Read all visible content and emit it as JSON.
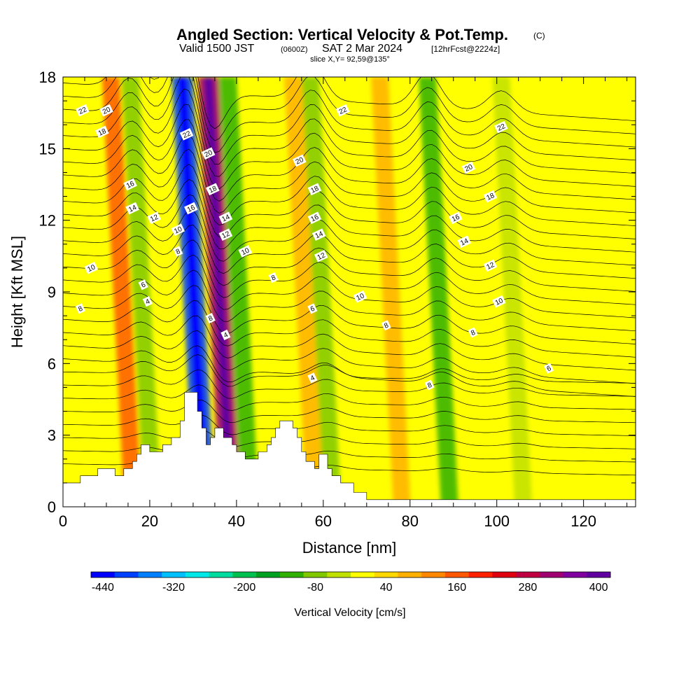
{
  "header": {
    "title_main": "Angled Section: Vertical Velocity & Pot.Temp.",
    "title_copyright": "(C)",
    "valid_prefix": "Valid 1500 JST",
    "valid_z": "(0600Z)",
    "valid_date": "SAT 2 Mar 2024",
    "valid_fcst": "[12hrFcst@2224z]",
    "slice": "slice X,Y= 92,59@135°"
  },
  "chart_data": {
    "type": "heatmap",
    "xlabel": "Distance [nm]",
    "ylabel": "Height [Kft MSL]",
    "xlim": [
      0,
      132
    ],
    "ylim": [
      0,
      18
    ],
    "x_ticks": [
      0,
      20,
      40,
      60,
      80,
      100,
      120
    ],
    "y_ticks": [
      0,
      3,
      6,
      9,
      12,
      15,
      18
    ],
    "x_tick_labels": [
      "0",
      "20",
      "40",
      "60",
      "80",
      "100",
      "120"
    ],
    "y_tick_labels": [
      "0",
      "3",
      "6",
      "9",
      "12",
      "15",
      "18"
    ],
    "colorbar": {
      "label": "Vertical Velocity [cm/s]",
      "colors": [
        "#0000ff",
        "#0040ff",
        "#0080ff",
        "#00c0ff",
        "#00e8e8",
        "#00dca0",
        "#00c050",
        "#00a020",
        "#30b000",
        "#80c800",
        "#c0e000",
        "#ffff00",
        "#ffd800",
        "#ffb000",
        "#ff8800",
        "#ff5800",
        "#ff2000",
        "#e00010",
        "#c00040",
        "#a00070",
        "#8000a0",
        "#6000a0"
      ],
      "tick_labels": [
        "-440",
        "-320",
        "-200",
        "-80",
        "40",
        "160",
        "280",
        "400"
      ],
      "tick_index": [
        0,
        3,
        6,
        9,
        12,
        15,
        18,
        21
      ]
    },
    "velocity_bands": [
      {
        "x": 15.5,
        "value": -80
      },
      {
        "x": 27.5,
        "value": -400
      },
      {
        "x": 33.5,
        "value": 300
      },
      {
        "x": 38,
        "value": -120
      },
      {
        "x": 57,
        "value": -100
      },
      {
        "x": 84,
        "value": -120
      },
      {
        "x": 101,
        "value": -60
      },
      {
        "x": 11,
        "value": 160
      },
      {
        "x": 53,
        "value": 80
      },
      {
        "x": 73,
        "value": 80
      }
    ],
    "terrain": [
      [
        0,
        1
      ],
      [
        4,
        1
      ],
      [
        4,
        1.3
      ],
      [
        8,
        1.3
      ],
      [
        8,
        1.6
      ],
      [
        12,
        1.6
      ],
      [
        12,
        1.3
      ],
      [
        14,
        1.3
      ],
      [
        14,
        1.6
      ],
      [
        16,
        1.6
      ],
      [
        16,
        1.9
      ],
      [
        17,
        1.9
      ],
      [
        17,
        2.2
      ],
      [
        18,
        2.2
      ],
      [
        18,
        2.6
      ],
      [
        20,
        2.6
      ],
      [
        20,
        2.3
      ],
      [
        23,
        2.3
      ],
      [
        23,
        2.6
      ],
      [
        25,
        2.6
      ],
      [
        25,
        2.9
      ],
      [
        27,
        2.9
      ],
      [
        27,
        3.6
      ],
      [
        28,
        3.6
      ],
      [
        28,
        4.8
      ],
      [
        31,
        4.8
      ],
      [
        31,
        4
      ],
      [
        32,
        4
      ],
      [
        32,
        3.3
      ],
      [
        33,
        3.3
      ],
      [
        33,
        2.6
      ],
      [
        34,
        2.6
      ],
      [
        34,
        2.9
      ],
      [
        35,
        2.9
      ],
      [
        35,
        3.3
      ],
      [
        37,
        3.3
      ],
      [
        37,
        2.9
      ],
      [
        39,
        2.9
      ],
      [
        39,
        2.6
      ],
      [
        40,
        2.6
      ],
      [
        40,
        2.3
      ],
      [
        42,
        2.3
      ],
      [
        42,
        2
      ],
      [
        45,
        2
      ],
      [
        45,
        2.3
      ],
      [
        47,
        2.3
      ],
      [
        47,
        2.6
      ],
      [
        48,
        2.6
      ],
      [
        48,
        2.9
      ],
      [
        49,
        2.9
      ],
      [
        49,
        3.3
      ],
      [
        50,
        3.3
      ],
      [
        50,
        3.6
      ],
      [
        53,
        3.6
      ],
      [
        53,
        3.3
      ],
      [
        54,
        3.3
      ],
      [
        54,
        2.9
      ],
      [
        55,
        2.9
      ],
      [
        55,
        2.3
      ],
      [
        56,
        2.3
      ],
      [
        56,
        1.9
      ],
      [
        58,
        1.9
      ],
      [
        58,
        1.6
      ],
      [
        59,
        1.6
      ],
      [
        59,
        2.2
      ],
      [
        61,
        2.2
      ],
      [
        61,
        1.6
      ],
      [
        62,
        1.6
      ],
      [
        62,
        1.3
      ],
      [
        64,
        1.3
      ],
      [
        64,
        1
      ],
      [
        67,
        1
      ],
      [
        67,
        0.6
      ],
      [
        70,
        0.6
      ],
      [
        70,
        0.3
      ],
      [
        132,
        0.3
      ],
      [
        132,
        0
      ],
      [
        0,
        0
      ]
    ],
    "theta_labels": [
      {
        "x": 4,
        "y": 8.3,
        "text": "8"
      },
      {
        "x": 6.5,
        "y": 10,
        "text": "10"
      },
      {
        "x": 9,
        "y": 15.7,
        "text": "18"
      },
      {
        "x": 10,
        "y": 16.6,
        "text": "20"
      },
      {
        "x": 4.5,
        "y": 16.6,
        "text": "22"
      },
      {
        "x": 15.5,
        "y": 13.5,
        "text": "16"
      },
      {
        "x": 16,
        "y": 12.5,
        "text": "14"
      },
      {
        "x": 21,
        "y": 12.1,
        "text": "12"
      },
      {
        "x": 18.5,
        "y": 9.3,
        "text": "6"
      },
      {
        "x": 19.5,
        "y": 8.6,
        "text": "4"
      },
      {
        "x": 28.5,
        "y": 15.6,
        "text": "22"
      },
      {
        "x": 33.5,
        "y": 14.8,
        "text": "20"
      },
      {
        "x": 34.5,
        "y": 13.3,
        "text": "18"
      },
      {
        "x": 29.5,
        "y": 12.5,
        "text": "16"
      },
      {
        "x": 37.5,
        "y": 12.1,
        "text": "14"
      },
      {
        "x": 37.5,
        "y": 11.4,
        "text": "12"
      },
      {
        "x": 26.5,
        "y": 11.6,
        "text": "10"
      },
      {
        "x": 26.5,
        "y": 10.7,
        "text": "8"
      },
      {
        "x": 34,
        "y": 7.9,
        "text": "8"
      },
      {
        "x": 37.5,
        "y": 7.2,
        "text": "4"
      },
      {
        "x": 42,
        "y": 10.7,
        "text": "10"
      },
      {
        "x": 48.5,
        "y": 9.6,
        "text": "8"
      },
      {
        "x": 54.5,
        "y": 14.5,
        "text": "20"
      },
      {
        "x": 58,
        "y": 13.3,
        "text": "18"
      },
      {
        "x": 58,
        "y": 12.1,
        "text": "16"
      },
      {
        "x": 59,
        "y": 11.4,
        "text": "14"
      },
      {
        "x": 59.5,
        "y": 10.5,
        "text": "12"
      },
      {
        "x": 57.5,
        "y": 8.3,
        "text": "6"
      },
      {
        "x": 57.5,
        "y": 5.4,
        "text": "4"
      },
      {
        "x": 64.5,
        "y": 16.6,
        "text": "22"
      },
      {
        "x": 68.5,
        "y": 8.8,
        "text": "10"
      },
      {
        "x": 74.5,
        "y": 7.6,
        "text": "8"
      },
      {
        "x": 84.5,
        "y": 5.1,
        "text": "8"
      },
      {
        "x": 101,
        "y": 15.9,
        "text": "22"
      },
      {
        "x": 93.5,
        "y": 14.2,
        "text": "20"
      },
      {
        "x": 98.5,
        "y": 13,
        "text": "18"
      },
      {
        "x": 90.5,
        "y": 12.1,
        "text": "16"
      },
      {
        "x": 92.5,
        "y": 11.1,
        "text": "14"
      },
      {
        "x": 98.5,
        "y": 10.1,
        "text": "12"
      },
      {
        "x": 100.5,
        "y": 8.6,
        "text": "10"
      },
      {
        "x": 94.5,
        "y": 7.3,
        "text": "8"
      },
      {
        "x": 112,
        "y": 5.8,
        "text": "6"
      }
    ]
  }
}
